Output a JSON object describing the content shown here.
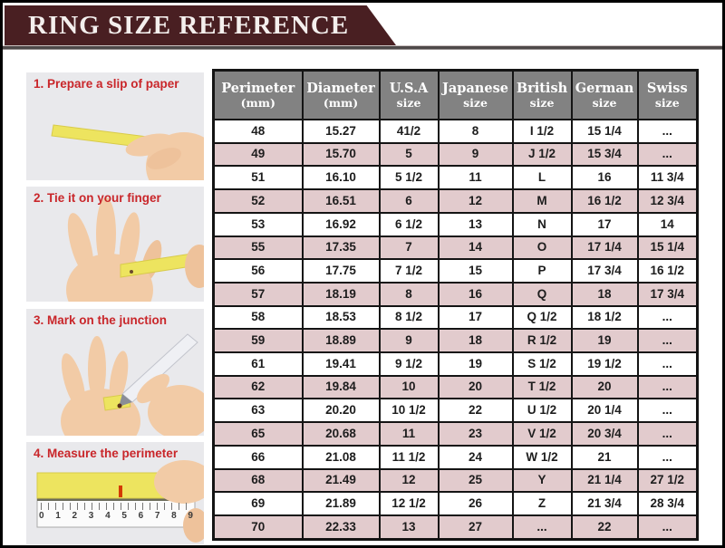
{
  "banner": {
    "title": "RING SIZE REFERENCE"
  },
  "steps": [
    {
      "label": "1. Prepare a slip of paper"
    },
    {
      "label": "2. Tie it on your finger"
    },
    {
      "label": "3. Mark on the junction"
    },
    {
      "label": "4. Measure the perimeter"
    }
  ],
  "ruler_numbers": [
    "0",
    "1",
    "2",
    "3",
    "4",
    "5",
    "6",
    "7",
    "8",
    "9"
  ],
  "table": {
    "headers": [
      {
        "line1": "Perimeter",
        "line2": "(mm)"
      },
      {
        "line1": "Diameter",
        "line2": "(mm)"
      },
      {
        "line1": "U.S.A",
        "line2": "size"
      },
      {
        "line1": "Japanese",
        "line2": "size"
      },
      {
        "line1": "British",
        "line2": "size"
      },
      {
        "line1": "German",
        "line2": "size"
      },
      {
        "line1": "Swiss",
        "line2": "size"
      }
    ],
    "rows": [
      [
        "48",
        "15.27",
        "41/2",
        "8",
        "I 1/2",
        "15 1/4",
        "..."
      ],
      [
        "49",
        "15.70",
        "5",
        "9",
        "J 1/2",
        "15 3/4",
        "..."
      ],
      [
        "51",
        "16.10",
        "5 1/2",
        "11",
        "L",
        "16",
        "11 3/4"
      ],
      [
        "52",
        "16.51",
        "6",
        "12",
        "M",
        "16 1/2",
        "12 3/4"
      ],
      [
        "53",
        "16.92",
        "6 1/2",
        "13",
        "N",
        "17",
        "14"
      ],
      [
        "55",
        "17.35",
        "7",
        "14",
        "O",
        "17 1/4",
        "15 1/4"
      ],
      [
        "56",
        "17.75",
        "7 1/2",
        "15",
        "P",
        "17 3/4",
        "16 1/2"
      ],
      [
        "57",
        "18.19",
        "8",
        "16",
        "Q",
        "18",
        "17 3/4"
      ],
      [
        "58",
        "18.53",
        "8 1/2",
        "17",
        "Q 1/2",
        "18 1/2",
        "..."
      ],
      [
        "59",
        "18.89",
        "9",
        "18",
        "R 1/2",
        "19",
        "..."
      ],
      [
        "61",
        "19.41",
        "9 1/2",
        "19",
        "S 1/2",
        "19 1/2",
        "..."
      ],
      [
        "62",
        "19.84",
        "10",
        "20",
        "T 1/2",
        "20",
        "..."
      ],
      [
        "63",
        "20.20",
        "10 1/2",
        "22",
        "U 1/2",
        "20 1/4",
        "..."
      ],
      [
        "65",
        "20.68",
        "11",
        "23",
        "V 1/2",
        "20 3/4",
        "..."
      ],
      [
        "66",
        "21.08",
        "11 1/2",
        "24",
        "W 1/2",
        "21",
        "..."
      ],
      [
        "68",
        "21.49",
        "12",
        "25",
        "Y",
        "21 1/4",
        "27 1/2"
      ],
      [
        "69",
        "21.89",
        "12 1/2",
        "26",
        "Z",
        "21 3/4",
        "28 3/4"
      ],
      [
        "70",
        "22.33",
        "13",
        "27",
        "...",
        "22",
        "..."
      ]
    ]
  },
  "colors": {
    "banner_bg": "#491f22",
    "step_label_red": "#c9262a",
    "table_header_gray": "#828282",
    "row_pink": "#e2cbcd",
    "paper_yellow": "#ede45f"
  }
}
